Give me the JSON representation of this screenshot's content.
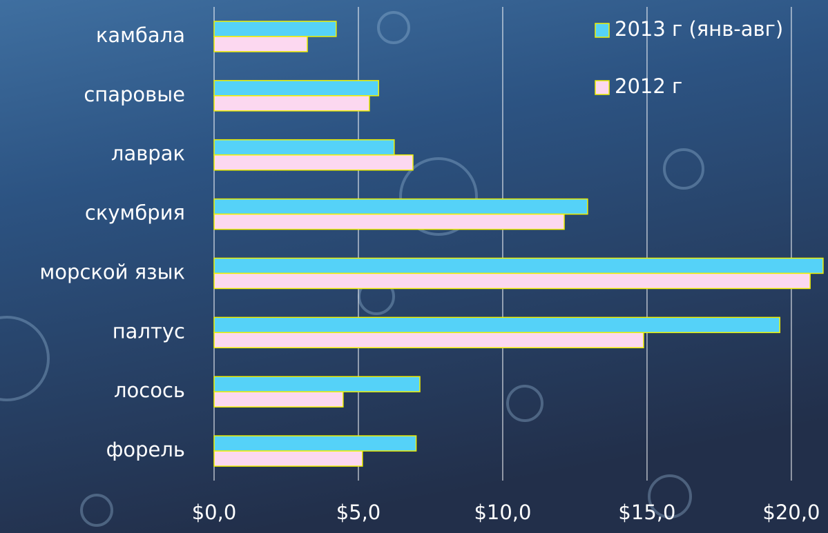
{
  "chart_data": {
    "type": "bar",
    "orientation": "horizontal",
    "categories": [
      "камбала",
      "спаровые",
      "лаврак",
      "скумбрия",
      "морской язык",
      "палтус",
      "лосось",
      "форель"
    ],
    "series": [
      {
        "name": "2013 г (янв-авг)",
        "color": "#55d2f8",
        "values": [
          4.23,
          5.7,
          6.24,
          12.94,
          21.1,
          19.6,
          7.13,
          7.0
        ]
      },
      {
        "name": "2012 г",
        "color": "#fcd8f0",
        "values": [
          3.23,
          5.38,
          6.89,
          12.13,
          20.65,
          14.88,
          4.47,
          5.14
        ]
      }
    ],
    "xlim": [
      0,
      21.15
    ],
    "xticks": [
      {
        "value": 0,
        "label": "$0,0"
      },
      {
        "value": 5,
        "label": "$5,0"
      },
      {
        "value": 10,
        "label": "$10,0"
      },
      {
        "value": 15,
        "label": "$15,0"
      },
      {
        "value": 20,
        "label": "$20,0"
      }
    ],
    "grid": true,
    "legend": "top-right",
    "bar_edge_color": "#f0f000"
  }
}
